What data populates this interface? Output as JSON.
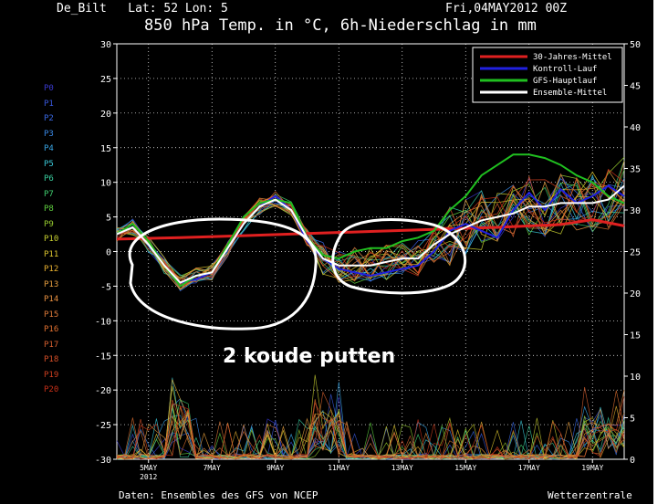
{
  "header": {
    "location": "De_Bilt   Lat: 52 Lon: 5",
    "date": "Fri,04MAY2012 00Z",
    "title": "850 hPa Temp. in °C, 6h-Niederschlag in mm"
  },
  "annotation": "2 koude putten",
  "footer": {
    "source": "Daten: Ensembles des GFS von NCEP",
    "brand": "Wetterzentrale"
  },
  "members": [
    {
      "label": "P0",
      "color": "#3a3ad0"
    },
    {
      "label": "P1",
      "color": "#3a5ae0"
    },
    {
      "label": "P2",
      "color": "#3a6ae8"
    },
    {
      "label": "P3",
      "color": "#3a8ae8"
    },
    {
      "label": "P4",
      "color": "#3aa8e8"
    },
    {
      "label": "P5",
      "color": "#3ac8d8"
    },
    {
      "label": "P6",
      "color": "#3ad0a0"
    },
    {
      "label": "P7",
      "color": "#40d070"
    },
    {
      "label": "P8",
      "color": "#60d040"
    },
    {
      "label": "P9",
      "color": "#9ad030"
    },
    {
      "label": "P10",
      "color": "#c8d030"
    },
    {
      "label": "P11",
      "color": "#e0c830"
    },
    {
      "label": "P12",
      "color": "#e8b030"
    },
    {
      "label": "P13",
      "color": "#e8a040"
    },
    {
      "label": "P14",
      "color": "#e89040"
    },
    {
      "label": "P15",
      "color": "#e07c3a"
    },
    {
      "label": "P16",
      "color": "#e07030"
    },
    {
      "label": "P17",
      "color": "#d86030"
    },
    {
      "label": "P18",
      "color": "#d85028"
    },
    {
      "label": "P19",
      "color": "#d04020"
    },
    {
      "label": "P20",
      "color": "#c83018"
    }
  ],
  "chart_data": {
    "type": "line",
    "x_ticks": [
      {
        "day": 5,
        "label": "5MAY"
      },
      {
        "day": 7,
        "label": "7MAY"
      },
      {
        "day": 9,
        "label": "9MAY"
      },
      {
        "day": 11,
        "label": "11MAY"
      },
      {
        "day": 13,
        "label": "13MAY"
      },
      {
        "day": 15,
        "label": "15MAY"
      },
      {
        "day": 17,
        "label": "17MAY"
      },
      {
        "day": 19,
        "label": "19MAY"
      }
    ],
    "x_sublabel": "2012",
    "xlim": [
      4,
      20
    ],
    "ylim_left": [
      -30,
      30
    ],
    "yticks_left": [
      30,
      25,
      20,
      15,
      10,
      5,
      0,
      -5,
      -10,
      -15,
      -20,
      -25,
      -30
    ],
    "ylim_right": [
      0,
      50
    ],
    "yticks_right": [
      50,
      45,
      40,
      35,
      30,
      25,
      20,
      15,
      10,
      5,
      0
    ],
    "legend_position": "top-right",
    "legend": [
      {
        "name": "30-Jahres-Mittel",
        "color": "#e02020"
      },
      {
        "name": "Kontroll-Lauf",
        "color": "#2020e0"
      },
      {
        "name": "GFS-Hauptlauf",
        "color": "#20c020"
      },
      {
        "name": "Ensemble-Mittel",
        "color": "#ffffff"
      }
    ],
    "series": [
      {
        "name": "30-Jahres-Mittel",
        "color": "#e02020",
        "x": [
          4,
          6,
          8,
          10,
          12,
          14,
          16,
          18,
          19,
          20
        ],
        "y": [
          1.8,
          2.0,
          2.3,
          2.6,
          2.9,
          3.2,
          3.5,
          3.9,
          4.6,
          3.7
        ]
      },
      {
        "name": "Kontroll-Lauf",
        "color": "#2020e0",
        "x": [
          4,
          4.5,
          5,
          5.5,
          6,
          6.5,
          7,
          7.5,
          8,
          8.5,
          9,
          9.5,
          10,
          10.5,
          11,
          11.5,
          12,
          12.5,
          13,
          13.5,
          14,
          14.5,
          15,
          15.5,
          16,
          16.5,
          17,
          17.5,
          18,
          18.5,
          19,
          19.5,
          20
        ],
        "y": [
          2.5,
          3.5,
          1.0,
          -2.0,
          -4.5,
          -4.0,
          -3.0,
          0.5,
          4.0,
          6.5,
          8.0,
          6.0,
          1.5,
          -1.0,
          -2.5,
          -3.0,
          -3.5,
          -3.0,
          -2.5,
          -2.0,
          0,
          3.0,
          4.0,
          3.0,
          2.0,
          6.0,
          8.5,
          6.0,
          9.0,
          7.0,
          8.0,
          9.5,
          8.0
        ]
      },
      {
        "name": "GFS-Hauptlauf",
        "color": "#20c020",
        "x": [
          4,
          4.5,
          5,
          5.5,
          6,
          6.5,
          7,
          7.5,
          8,
          8.5,
          9,
          9.5,
          10,
          10.5,
          11,
          11.5,
          12,
          12.5,
          13,
          13.5,
          14,
          14.5,
          15,
          15.5,
          16,
          16.5,
          17,
          17.5,
          18,
          18.5,
          19,
          19.5,
          20
        ],
        "y": [
          2.5,
          4.0,
          1.5,
          -2.0,
          -5.0,
          -3.5,
          -3.0,
          1.0,
          5.0,
          7.0,
          7.5,
          7.0,
          2.0,
          -0.5,
          -1.0,
          0,
          0.5,
          0.5,
          1.5,
          2.0,
          3.0,
          6.0,
          8.0,
          11.0,
          12.5,
          14.0,
          14.0,
          13.5,
          12.5,
          11.0,
          10.0,
          8.0,
          7.0
        ]
      },
      {
        "name": "Ensemble-Mittel",
        "color": "#ffffff",
        "x": [
          4,
          4.5,
          5,
          5.5,
          6,
          6.5,
          7,
          7.5,
          8,
          8.5,
          9,
          9.5,
          10,
          10.5,
          11,
          11.5,
          12,
          12.5,
          13,
          13.5,
          14,
          14.5,
          15,
          15.5,
          16,
          16.5,
          17,
          17.5,
          18,
          18.5,
          19,
          19.5,
          20
        ],
        "y": [
          2.5,
          3.5,
          1.0,
          -2.0,
          -4.5,
          -3.5,
          -3.0,
          0.5,
          4.0,
          6.5,
          7.5,
          6.0,
          2.0,
          -1.0,
          -2.0,
          -2.0,
          -2.0,
          -1.5,
          -1.0,
          -1.0,
          1.0,
          2.5,
          3.5,
          4.5,
          5.0,
          5.5,
          6.5,
          6.5,
          7.0,
          7.0,
          7.0,
          7.5,
          9.5
        ]
      }
    ]
  }
}
